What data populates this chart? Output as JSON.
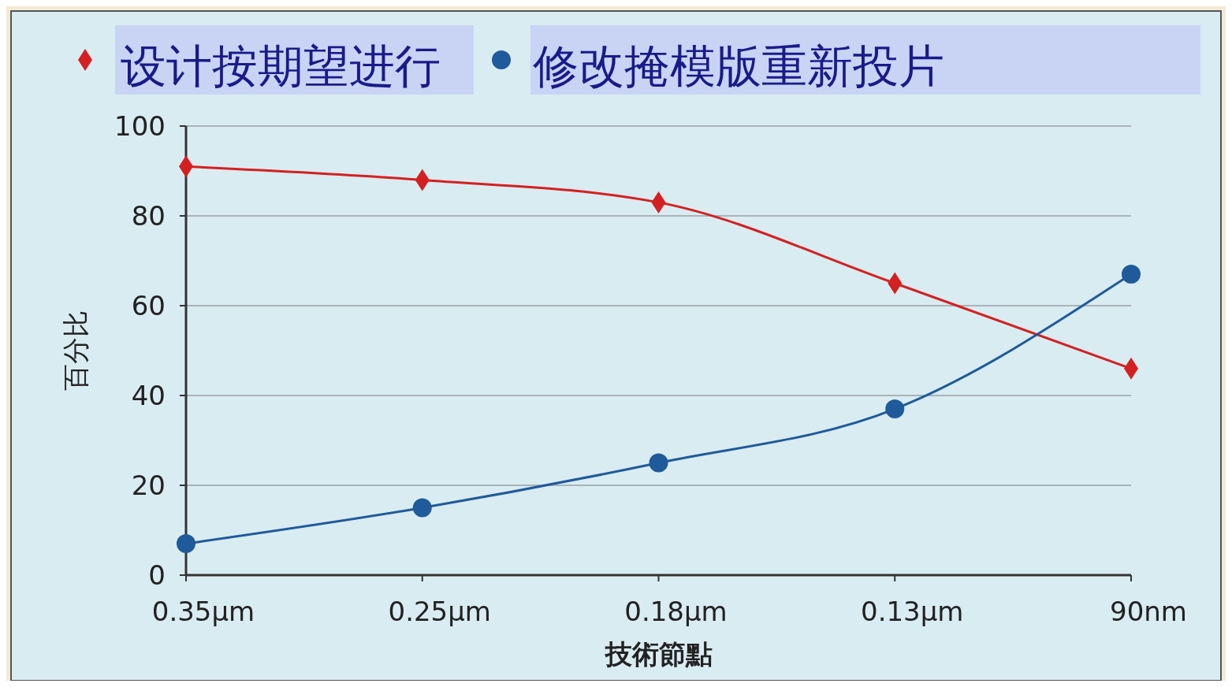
{
  "chart_data": {
    "type": "line",
    "xlabel": "技術節點",
    "ylabel": "百分比",
    "categories": [
      "0.35μm",
      "0.25μm",
      "0.18μm",
      "0.13μm",
      "90nm"
    ],
    "series": [
      {
        "name": "设计按期望进行",
        "color": "#d42020",
        "marker": "diamond",
        "values": [
          91,
          88,
          83,
          65,
          46
        ]
      },
      {
        "name": "修改掩模版重新投片",
        "color": "#1f5a9a",
        "marker": "circle",
        "values": [
          7,
          15,
          25,
          37,
          67
        ]
      }
    ],
    "ylim": [
      0,
      100
    ],
    "yticks": [
      0,
      20,
      40,
      60,
      80,
      100
    ],
    "grid": "y",
    "legend": "top",
    "line_style": "solid"
  }
}
